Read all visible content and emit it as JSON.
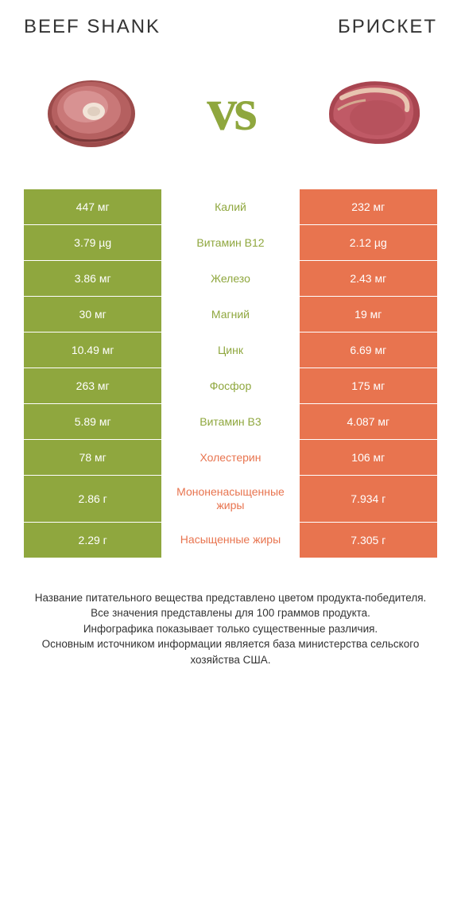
{
  "titles": {
    "left": "Beef shank",
    "right": "Брискет"
  },
  "vs": "vs",
  "colors": {
    "green": "#8fa73e",
    "orange": "#e8744f",
    "text_dark": "#333333",
    "white": "#ffffff"
  },
  "rows": [
    {
      "left": "447 мг",
      "mid": "Калий",
      "right": "232 мг",
      "mid_color": "#8fa73e"
    },
    {
      "left": "3.79 µg",
      "mid": "Витамин B12",
      "right": "2.12 µg",
      "mid_color": "#8fa73e"
    },
    {
      "left": "3.86 мг",
      "mid": "Железо",
      "right": "2.43 мг",
      "mid_color": "#8fa73e"
    },
    {
      "left": "30 мг",
      "mid": "Магний",
      "right": "19 мг",
      "mid_color": "#8fa73e"
    },
    {
      "left": "10.49 мг",
      "mid": "Цинк",
      "right": "6.69 мг",
      "mid_color": "#8fa73e"
    },
    {
      "left": "263 мг",
      "mid": "Фосфор",
      "right": "175 мг",
      "mid_color": "#8fa73e"
    },
    {
      "left": "5.89 мг",
      "mid": "Витамин B3",
      "right": "4.087 мг",
      "mid_color": "#8fa73e"
    },
    {
      "left": "78 мг",
      "mid": "Холестерин",
      "right": "106 мг",
      "mid_color": "#e8744f"
    },
    {
      "left": "2.86 г",
      "mid": "Мононенасыщенные жиры",
      "right": "7.934 г",
      "mid_color": "#e8744f"
    },
    {
      "left": "2.29 г",
      "mid": "Насыщенные жиры",
      "right": "7.305 г",
      "mid_color": "#e8744f"
    }
  ],
  "footer": "Название питательного вещества представлено цветом продукта-победителя.\nВсе значения представлены для 100 граммов продукта.\nИнфографика показывает только существенные различия.\nОсновным источником информации является база министерства сельского хозяйства США."
}
